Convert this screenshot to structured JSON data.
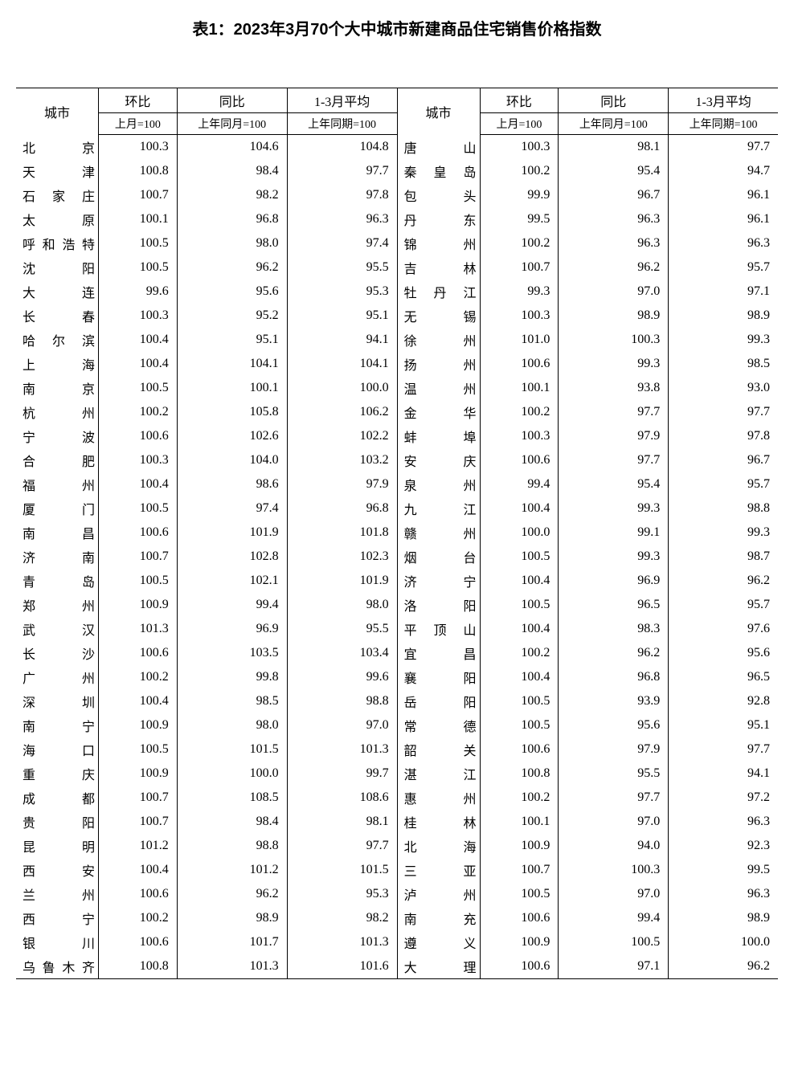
{
  "title": "表1：2023年3月70个大中城市新建商品住宅销售价格指数",
  "headers": {
    "city": "城市",
    "mom": "环比",
    "yoy": "同比",
    "avg": "1-3月平均",
    "mom_sub": "上月=100",
    "yoy_sub": "上年同月=100",
    "avg_sub": "上年同期=100"
  },
  "rows": [
    {
      "c1": "北　　京",
      "m1": "100.3",
      "y1": "104.6",
      "a1": "104.8",
      "c2": "唐　　山",
      "m2": "100.3",
      "y2": "98.1",
      "a2": "97.7"
    },
    {
      "c1": "天　　津",
      "m1": "100.8",
      "y1": "98.4",
      "a1": "97.7",
      "c2": "秦 皇 岛",
      "m2": "100.2",
      "y2": "95.4",
      "a2": "94.7"
    },
    {
      "c1": "石 家 庄",
      "m1": "100.7",
      "y1": "98.2",
      "a1": "97.8",
      "c2": "包　　头",
      "m2": "99.9",
      "y2": "96.7",
      "a2": "96.1"
    },
    {
      "c1": "太　　原",
      "m1": "100.1",
      "y1": "96.8",
      "a1": "96.3",
      "c2": "丹　　东",
      "m2": "99.5",
      "y2": "96.3",
      "a2": "96.1"
    },
    {
      "c1": "呼和浩特",
      "m1": "100.5",
      "y1": "98.0",
      "a1": "97.4",
      "c2": "锦　　州",
      "m2": "100.2",
      "y2": "96.3",
      "a2": "96.3"
    },
    {
      "c1": "沈　　阳",
      "m1": "100.5",
      "y1": "96.2",
      "a1": "95.5",
      "c2": "吉　　林",
      "m2": "100.7",
      "y2": "96.2",
      "a2": "95.7"
    },
    {
      "c1": "大　　连",
      "m1": "99.6",
      "y1": "95.6",
      "a1": "95.3",
      "c2": "牡 丹 江",
      "m2": "99.3",
      "y2": "97.0",
      "a2": "97.1"
    },
    {
      "c1": "长　　春",
      "m1": "100.3",
      "y1": "95.2",
      "a1": "95.1",
      "c2": "无　　锡",
      "m2": "100.3",
      "y2": "98.9",
      "a2": "98.9"
    },
    {
      "c1": "哈 尔 滨",
      "m1": "100.4",
      "y1": "95.1",
      "a1": "94.1",
      "c2": "徐　　州",
      "m2": "101.0",
      "y2": "100.3",
      "a2": "99.3"
    },
    {
      "c1": "上　　海",
      "m1": "100.4",
      "y1": "104.1",
      "a1": "104.1",
      "c2": "扬　　州",
      "m2": "100.6",
      "y2": "99.3",
      "a2": "98.5"
    },
    {
      "c1": "南　　京",
      "m1": "100.5",
      "y1": "100.1",
      "a1": "100.0",
      "c2": "温　　州",
      "m2": "100.1",
      "y2": "93.8",
      "a2": "93.0"
    },
    {
      "c1": "杭　　州",
      "m1": "100.2",
      "y1": "105.8",
      "a1": "106.2",
      "c2": "金　　华",
      "m2": "100.2",
      "y2": "97.7",
      "a2": "97.7"
    },
    {
      "c1": "宁　　波",
      "m1": "100.6",
      "y1": "102.6",
      "a1": "102.2",
      "c2": "蚌　　埠",
      "m2": "100.3",
      "y2": "97.9",
      "a2": "97.8"
    },
    {
      "c1": "合　　肥",
      "m1": "100.3",
      "y1": "104.0",
      "a1": "103.2",
      "c2": "安　　庆",
      "m2": "100.6",
      "y2": "97.7",
      "a2": "96.7"
    },
    {
      "c1": "福　　州",
      "m1": "100.4",
      "y1": "98.6",
      "a1": "97.9",
      "c2": "泉　　州",
      "m2": "99.4",
      "y2": "95.4",
      "a2": "95.7"
    },
    {
      "c1": "厦　　门",
      "m1": "100.5",
      "y1": "97.4",
      "a1": "96.8",
      "c2": "九　　江",
      "m2": "100.4",
      "y2": "99.3",
      "a2": "98.8"
    },
    {
      "c1": "南　　昌",
      "m1": "100.6",
      "y1": "101.9",
      "a1": "101.8",
      "c2": "赣　　州",
      "m2": "100.0",
      "y2": "99.1",
      "a2": "99.3"
    },
    {
      "c1": "济　　南",
      "m1": "100.7",
      "y1": "102.8",
      "a1": "102.3",
      "c2": "烟　　台",
      "m2": "100.5",
      "y2": "99.3",
      "a2": "98.7"
    },
    {
      "c1": "青　　岛",
      "m1": "100.5",
      "y1": "102.1",
      "a1": "101.9",
      "c2": "济　　宁",
      "m2": "100.4",
      "y2": "96.9",
      "a2": "96.2"
    },
    {
      "c1": "郑　　州",
      "m1": "100.9",
      "y1": "99.4",
      "a1": "98.0",
      "c2": "洛　　阳",
      "m2": "100.5",
      "y2": "96.5",
      "a2": "95.7"
    },
    {
      "c1": "武　　汉",
      "m1": "101.3",
      "y1": "96.9",
      "a1": "95.5",
      "c2": "平 顶 山",
      "m2": "100.4",
      "y2": "98.3",
      "a2": "97.6"
    },
    {
      "c1": "长　　沙",
      "m1": "100.6",
      "y1": "103.5",
      "a1": "103.4",
      "c2": "宜　　昌",
      "m2": "100.2",
      "y2": "96.2",
      "a2": "95.6"
    },
    {
      "c1": "广　　州",
      "m1": "100.2",
      "y1": "99.8",
      "a1": "99.6",
      "c2": "襄　　阳",
      "m2": "100.4",
      "y2": "96.8",
      "a2": "96.5"
    },
    {
      "c1": "深　　圳",
      "m1": "100.4",
      "y1": "98.5",
      "a1": "98.8",
      "c2": "岳　　阳",
      "m2": "100.5",
      "y2": "93.9",
      "a2": "92.8"
    },
    {
      "c1": "南　　宁",
      "m1": "100.9",
      "y1": "98.0",
      "a1": "97.0",
      "c2": "常　　德",
      "m2": "100.5",
      "y2": "95.6",
      "a2": "95.1"
    },
    {
      "c1": "海　　口",
      "m1": "100.5",
      "y1": "101.5",
      "a1": "101.3",
      "c2": "韶　　关",
      "m2": "100.6",
      "y2": "97.9",
      "a2": "97.7"
    },
    {
      "c1": "重　　庆",
      "m1": "100.9",
      "y1": "100.0",
      "a1": "99.7",
      "c2": "湛　　江",
      "m2": "100.8",
      "y2": "95.5",
      "a2": "94.1"
    },
    {
      "c1": "成　　都",
      "m1": "100.7",
      "y1": "108.5",
      "a1": "108.6",
      "c2": "惠　　州",
      "m2": "100.2",
      "y2": "97.7",
      "a2": "97.2"
    },
    {
      "c1": "贵　　阳",
      "m1": "100.7",
      "y1": "98.4",
      "a1": "98.1",
      "c2": "桂　　林",
      "m2": "100.1",
      "y2": "97.0",
      "a2": "96.3"
    },
    {
      "c1": "昆　　明",
      "m1": "101.2",
      "y1": "98.8",
      "a1": "97.7",
      "c2": "北　　海",
      "m2": "100.9",
      "y2": "94.0",
      "a2": "92.3"
    },
    {
      "c1": "西　　安",
      "m1": "100.4",
      "y1": "101.2",
      "a1": "101.5",
      "c2": "三　　亚",
      "m2": "100.7",
      "y2": "100.3",
      "a2": "99.5"
    },
    {
      "c1": "兰　　州",
      "m1": "100.6",
      "y1": "96.2",
      "a1": "95.3",
      "c2": "泸　　州",
      "m2": "100.5",
      "y2": "97.0",
      "a2": "96.3"
    },
    {
      "c1": "西　　宁",
      "m1": "100.2",
      "y1": "98.9",
      "a1": "98.2",
      "c2": "南　　充",
      "m2": "100.6",
      "y2": "99.4",
      "a2": "98.9"
    },
    {
      "c1": "银　　川",
      "m1": "100.6",
      "y1": "101.7",
      "a1": "101.3",
      "c2": "遵　　义",
      "m2": "100.9",
      "y2": "100.5",
      "a2": "100.0"
    },
    {
      "c1": "乌鲁木齐",
      "m1": "100.8",
      "y1": "101.3",
      "a1": "101.6",
      "c2": "大　　理",
      "m2": "100.6",
      "y2": "97.1",
      "a2": "96.2"
    }
  ],
  "col_widths": {
    "city": "90px",
    "num": "100px"
  },
  "colors": {
    "bg": "#ffffff",
    "text": "#000000",
    "border": "#000000"
  }
}
